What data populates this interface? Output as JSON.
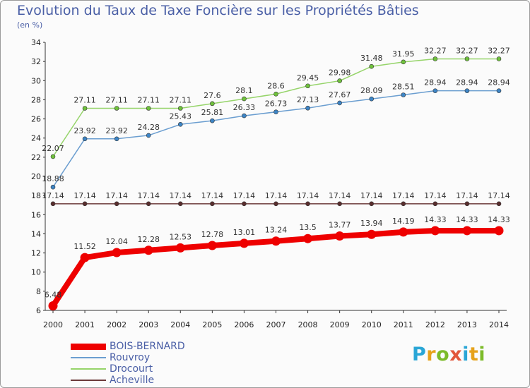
{
  "title": "Evolution du Taux de Taxe Foncière sur les Propriétés Bâties",
  "units": "(en %)",
  "logo": {
    "text": "Proxiti",
    "letters": [
      {
        "ch": "P",
        "color": "#2aa6d6"
      },
      {
        "ch": "r",
        "color": "#e6a21a"
      },
      {
        "ch": "o",
        "color": "#7cbb2a"
      },
      {
        "ch": "x",
        "color": "#e2573c"
      },
      {
        "ch": "i",
        "color": "#2aa6d6"
      },
      {
        "ch": "t",
        "color": "#e6a21a"
      },
      {
        "ch": "i",
        "color": "#7cbb2a"
      }
    ]
  },
  "chart_data": {
    "type": "line",
    "title": "Evolution du Taux de Taxe Foncière sur les Propriétés Bâties",
    "xlabel": "",
    "ylabel": "(en %)",
    "x": [
      "2000",
      "2001",
      "2002",
      "2003",
      "2004",
      "2005",
      "2006",
      "2007",
      "2008",
      "2009",
      "2010",
      "2011",
      "2012",
      "2013",
      "2014"
    ],
    "ylim": [
      6,
      34
    ],
    "yticks": [
      6,
      8,
      10,
      12,
      14,
      16,
      18,
      20,
      22,
      24,
      26,
      28,
      30,
      32,
      34
    ],
    "grid": false,
    "legend": "bottom-left",
    "series": [
      {
        "name": "BOIS-BERNARD",
        "color": "#ee0000",
        "marker": "#ee0000",
        "values": [
          6.48,
          11.52,
          12.04,
          12.28,
          12.53,
          12.78,
          13.01,
          13.24,
          13.5,
          13.77,
          13.94,
          14.19,
          14.33,
          14.33,
          14.33
        ],
        "labels": [
          "6.48",
          "11.52",
          "12.04",
          "12.28",
          "12.53",
          "12.78",
          "13.01",
          "13.24",
          "13.5",
          "13.77",
          "13.94",
          "14.19",
          "14.33",
          "14.33",
          "14.33"
        ]
      },
      {
        "name": "Rouvroy",
        "color": "#6b9ed0",
        "marker": "#3d85c6",
        "values": [
          18.88,
          23.92,
          23.92,
          24.28,
          25.43,
          25.81,
          26.33,
          26.73,
          27.13,
          27.67,
          28.09,
          28.51,
          28.94,
          28.94,
          28.94
        ],
        "labels": [
          "18.88",
          "23.92",
          "23.92",
          "24.28",
          "25.43",
          "25.81",
          "26.33",
          "26.73",
          "27.13",
          "27.67",
          "28.09",
          "28.51",
          "28.94",
          "28.94",
          "28.94"
        ]
      },
      {
        "name": "Drocourt",
        "color": "#96d46a",
        "marker": "#6fc23c",
        "values": [
          22.07,
          27.11,
          27.11,
          27.11,
          27.11,
          27.6,
          28.1,
          28.6,
          29.45,
          29.98,
          31.48,
          31.95,
          32.27,
          32.27,
          32.27
        ],
        "labels": [
          "22.07",
          "27.11",
          "27.11",
          "27.11",
          "27.11",
          "27.6",
          "28.1",
          "28.6",
          "29.45",
          "29.98",
          "31.48",
          "31.95",
          "32.27",
          "32.27",
          "32.27"
        ]
      },
      {
        "name": "Acheville",
        "color": "#6b3a3a",
        "marker": "#5a2e2e",
        "values": [
          17.14,
          17.14,
          17.14,
          17.14,
          17.14,
          17.14,
          17.14,
          17.14,
          17.14,
          17.14,
          17.14,
          17.14,
          17.14,
          17.14,
          17.14
        ],
        "labels": [
          "17.14",
          "17.14",
          "17.14",
          "17.14",
          "17.14",
          "17.14",
          "17.14",
          "17.14",
          "17.14",
          "17.14",
          "17.14",
          "17.14",
          "17.14",
          "17.14",
          "17.14"
        ]
      }
    ]
  }
}
